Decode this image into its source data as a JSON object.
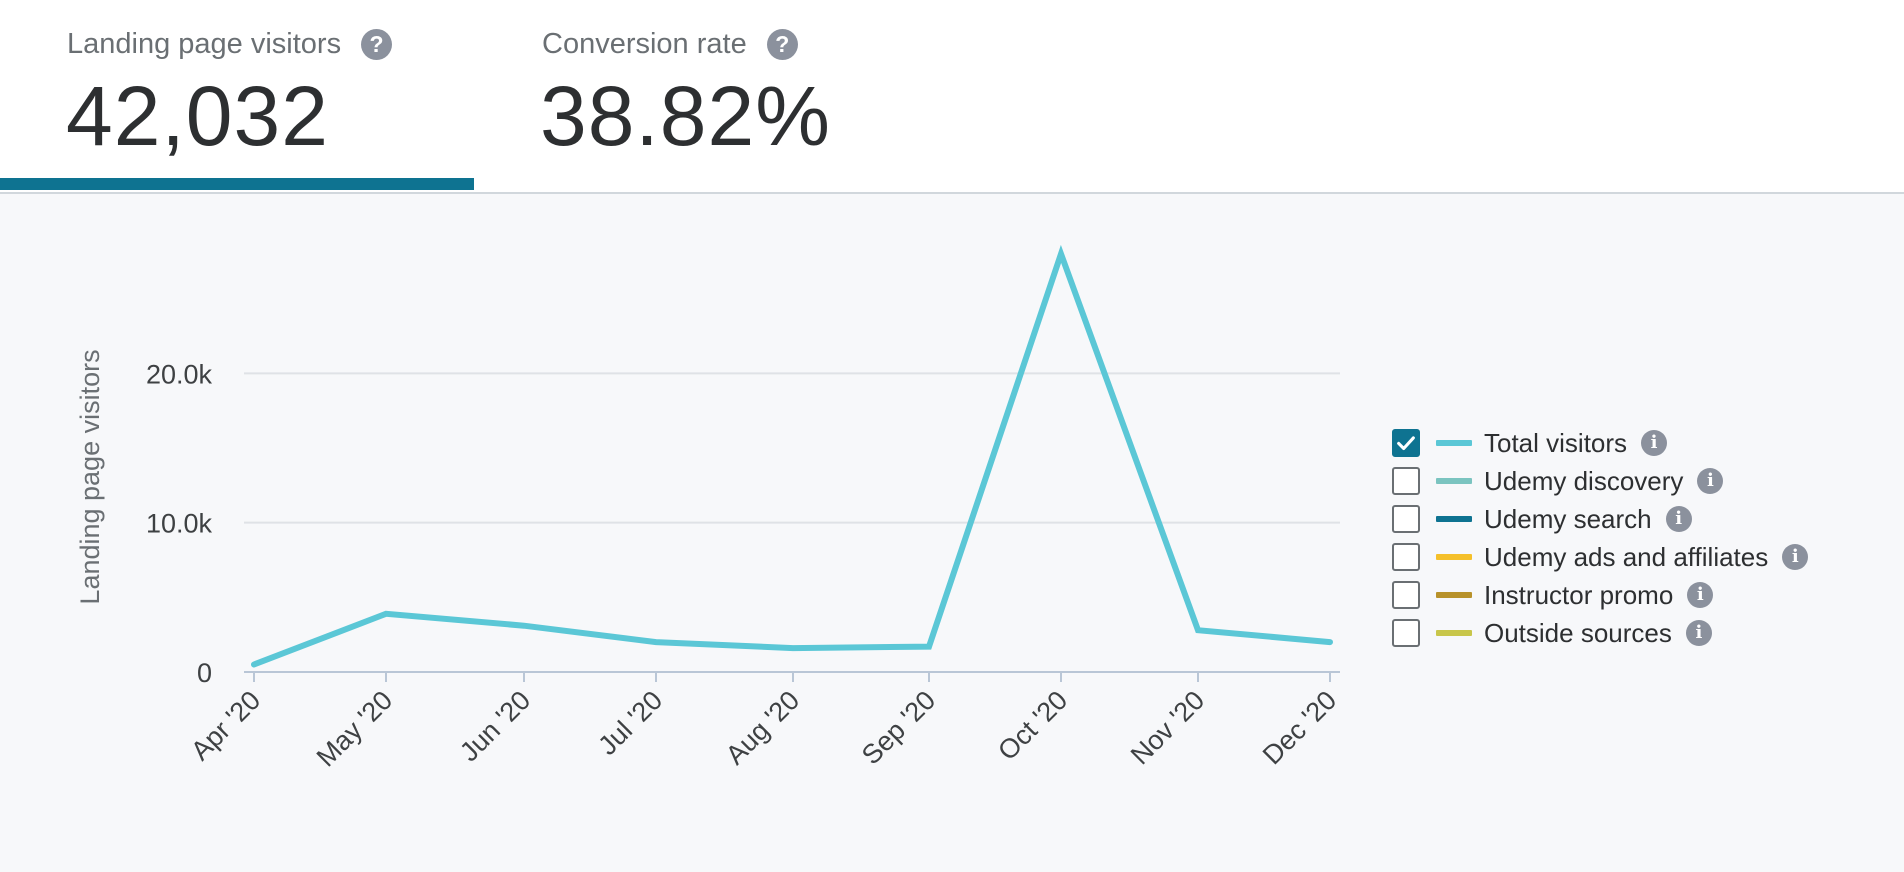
{
  "metrics": [
    {
      "label": "Landing page visitors",
      "value": "42,032",
      "help_icon": "question-circle-icon"
    },
    {
      "label": "Conversion rate",
      "value": "38.82%",
      "help_icon": "question-circle-icon"
    }
  ],
  "colors": {
    "accent": "#0e7391",
    "total_visitors": "#5bc7d6",
    "udemy_discovery": "#7bc4c0",
    "udemy_search": "#0e7391",
    "udemy_ads": "#f5c02a",
    "instructor_promo": "#b8922a",
    "outside_sources": "#c8c64a"
  },
  "legend": {
    "items": [
      {
        "label": "Total visitors",
        "checked": true,
        "color": "#5bc7d6",
        "icon": "info-icon"
      },
      {
        "label": "Udemy discovery",
        "checked": false,
        "color": "#7bc4c0",
        "icon": "info-icon"
      },
      {
        "label": "Udemy search",
        "checked": false,
        "color": "#0e7391",
        "icon": "info-icon"
      },
      {
        "label": "Udemy ads and affiliates",
        "checked": false,
        "color": "#f5c02a",
        "icon": "info-icon"
      },
      {
        "label": "Instructor promo",
        "checked": false,
        "color": "#b8922a",
        "icon": "info-icon"
      },
      {
        "label": "Outside sources",
        "checked": false,
        "color": "#c8c64a",
        "icon": "info-icon"
      }
    ]
  },
  "chart_data": {
    "type": "line",
    "title": "",
    "xlabel": "",
    "ylabel": "Landing page visitors",
    "categories": [
      "Apr '20",
      "May '20",
      "Jun '20",
      "Jul '20",
      "Aug '20",
      "Sep '20",
      "Oct '20",
      "Nov '20",
      "Dec '20"
    ],
    "series": [
      {
        "name": "Total visitors",
        "values": [
          500,
          3900,
          3100,
          2000,
          1600,
          1700,
          28000,
          2800,
          2000
        ]
      }
    ],
    "ylim": [
      0,
      30000
    ],
    "yticks": [
      {
        "value": 0,
        "label": "0"
      },
      {
        "value": 10000,
        "label": "10.0k"
      },
      {
        "value": 20000,
        "label": "20.0k"
      }
    ],
    "grid": true,
    "legend_position": "right"
  }
}
